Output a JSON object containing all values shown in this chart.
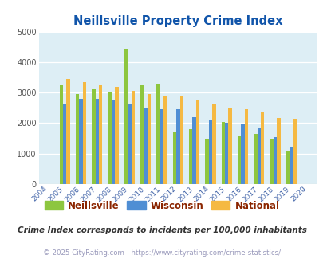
{
  "title": "Neillsville Property Crime Index",
  "years": [
    "2004",
    "2005",
    "2006",
    "2007",
    "2008",
    "2009",
    "2010",
    "2011",
    "2012",
    "2013",
    "2014",
    "2015",
    "2016",
    "2017",
    "2018",
    "2019",
    "2020"
  ],
  "neillsville": [
    null,
    3250,
    2950,
    3100,
    3000,
    4450,
    3250,
    3300,
    1700,
    1800,
    1480,
    2050,
    1580,
    1650,
    1450,
    1100,
    null
  ],
  "wisconsin": [
    null,
    2650,
    2800,
    2800,
    2750,
    2600,
    2500,
    2450,
    2450,
    2200,
    2100,
    2000,
    1970,
    1830,
    1550,
    1230,
    null
  ],
  "national": [
    null,
    3450,
    3350,
    3250,
    3200,
    3050,
    2950,
    2900,
    2880,
    2750,
    2620,
    2500,
    2460,
    2360,
    2180,
    2130,
    null
  ],
  "neillsville_color": "#8dc63f",
  "wisconsin_color": "#4f8ed4",
  "national_color": "#f5b942",
  "bg_color": "#ddeef5",
  "ylim": [
    0,
    5000
  ],
  "yticks": [
    0,
    1000,
    2000,
    3000,
    4000,
    5000
  ],
  "legend_labels": [
    "Neillsville",
    "Wisconsin",
    "National"
  ],
  "legend_text_color": "#8b2500",
  "footnote1": "Crime Index corresponds to incidents per 100,000 inhabitants",
  "footnote1_color": "#333333",
  "footnote2": "© 2025 CityRating.com - https://www.cityrating.com/crime-statistics/",
  "footnote2_color": "#9999bb",
  "title_color": "#1155aa",
  "bar_width": 0.22
}
